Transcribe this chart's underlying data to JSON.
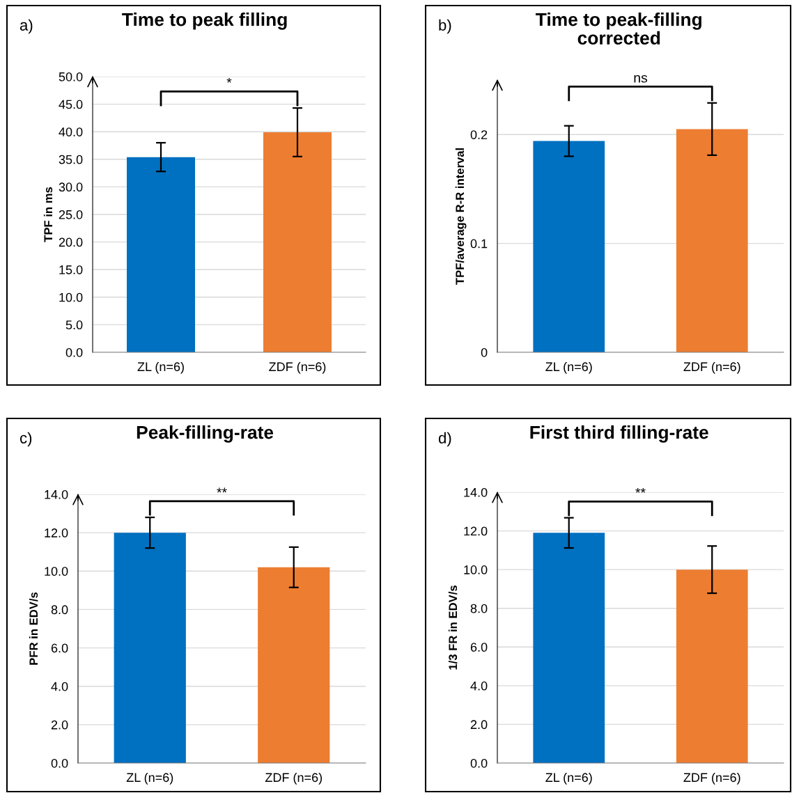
{
  "chart_data": [
    {
      "type": "bar",
      "title": "Time to peak filling",
      "ylabel": "TPF in ms",
      "categories": [
        "ZL (n=6)",
        "ZDF (n=6)"
      ],
      "values": [
        35.4,
        39.9
      ],
      "colors": [
        "#0070c0",
        "#ed7d31"
      ],
      "errors": [
        2.6,
        4.4
      ],
      "ylim": [
        0,
        50
      ],
      "yticks": [
        {
          "value": 0,
          "label": "0.0"
        },
        {
          "value": 5,
          "label": "5.0"
        },
        {
          "value": 10,
          "label": "10.0"
        },
        {
          "value": 15,
          "label": "15.0"
        },
        {
          "value": 20,
          "label": "20.0"
        },
        {
          "value": 25,
          "label": "25.0"
        },
        {
          "value": 30,
          "label": "30.0"
        },
        {
          "value": 35,
          "label": "35.0"
        },
        {
          "value": 40,
          "label": "40.0"
        },
        {
          "value": 45,
          "label": "45.0"
        },
        {
          "value": 50,
          "label": "50.0"
        }
      ],
      "grid": "y",
      "annotations": [
        "a)",
        "*"
      ]
    },
    {
      "type": "bar",
      "title": "Time to peak-filling\ncorrected",
      "ylabel": "TPF/average R-R interval",
      "categories": [
        "ZL (n=6)",
        "ZDF (n=6)"
      ],
      "values": [
        0.194,
        0.205
      ],
      "colors": [
        "#0070c0",
        "#ed7d31"
      ],
      "errors": [
        0.014,
        0.024
      ],
      "ylim": [
        0,
        0.25
      ],
      "yticks": [
        0,
        0.1,
        0.2
      ],
      "grid": "y",
      "annotations": [
        "b)",
        "ns"
      ]
    },
    {
      "type": "bar",
      "title": "Peak-filling-rate",
      "ylabel": "PFR in EDV/s",
      "categories": [
        "ZL (n=6)",
        "ZDF (n=6)"
      ],
      "values": [
        12.0,
        10.2
      ],
      "colors": [
        "#0070c0",
        "#ed7d31"
      ],
      "errors": [
        0.8,
        1.05
      ],
      "ylim": [
        0,
        14
      ],
      "yticks": [
        {
          "value": 0,
          "label": "0.0"
        },
        {
          "value": 2,
          "label": "2.0"
        },
        {
          "value": 4,
          "label": "4.0"
        },
        {
          "value": 6,
          "label": "6.0"
        },
        {
          "value": 8,
          "label": "8.0"
        },
        {
          "value": 10,
          "label": "10.0"
        },
        {
          "value": 12,
          "label": "12.0"
        },
        {
          "value": 14,
          "label": "14.0"
        }
      ],
      "grid": "y",
      "annotations": [
        "c)",
        "**"
      ]
    },
    {
      "type": "bar",
      "title": "First third filling-rate",
      "ylabel": "1/3 FR in EDV/s",
      "categories": [
        "ZL (n=6)",
        "ZDF (n=6)"
      ],
      "values": [
        11.9,
        10.0
      ],
      "colors": [
        "#0070c0",
        "#ed7d31"
      ],
      "errors": [
        0.78,
        1.22
      ],
      "ylim": [
        0,
        14
      ],
      "yticks": [
        {
          "value": 0,
          "label": "0.0"
        },
        {
          "value": 2,
          "label": "2.0"
        },
        {
          "value": 4,
          "label": "4.0"
        },
        {
          "value": 6,
          "label": "6.0"
        },
        {
          "value": 8,
          "label": "8.0"
        },
        {
          "value": 10,
          "label": "10.0"
        },
        {
          "value": 12,
          "label": "12.0"
        },
        {
          "value": 14,
          "label": "14.0"
        }
      ],
      "grid": "y",
      "annotations": [
        "d)",
        "**"
      ]
    }
  ]
}
